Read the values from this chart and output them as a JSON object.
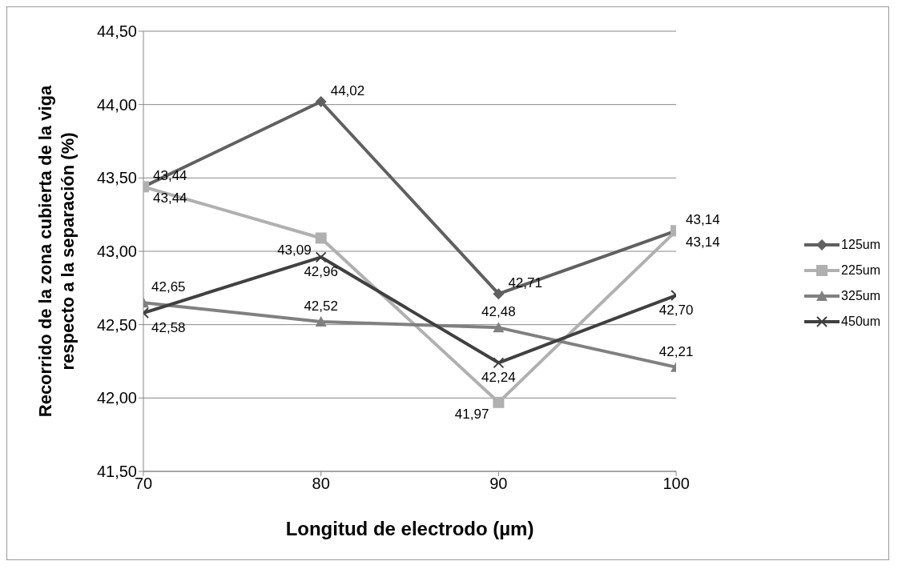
{
  "chart_data": {
    "type": "line",
    "xlabel": "Longitud de electrodo (µm)",
    "ylabel": "Recorrido de la zona cubierta de la viga respecto a la separación (%)",
    "x": [
      70,
      80,
      90,
      100
    ],
    "xlim": [
      70,
      100
    ],
    "xticks": [
      70,
      80,
      90,
      100
    ],
    "ylim": [
      41.5,
      44.5
    ],
    "yticks": [
      {
        "value": 41.5,
        "label": "41,50"
      },
      {
        "value": 42,
        "label": "42,00"
      },
      {
        "value": 42.5,
        "label": "42,50"
      },
      {
        "value": 43,
        "label": "43,00"
      },
      {
        "value": 43.5,
        "label": "43,50"
      },
      {
        "value": 44,
        "label": "44,00"
      },
      {
        "value": 44.5,
        "label": "44,50"
      }
    ],
    "grid": "y",
    "legend": "right",
    "line_style": "solid",
    "series": [
      {
        "name": "125um",
        "color": "#606060",
        "marker": "diamond",
        "values": [
          43.44,
          44.02,
          42.71,
          43.14
        ],
        "value_labels": [
          "43,44",
          "44,02",
          "42,71",
          "43,14"
        ]
      },
      {
        "name": "225um",
        "color": "#b0b0b0",
        "marker": "square",
        "values": [
          43.44,
          43.09,
          41.97,
          43.14
        ],
        "value_labels": [
          "43,44",
          "43,09",
          "41,97",
          "43,14"
        ]
      },
      {
        "name": "325um",
        "color": "#808080",
        "marker": "triangle",
        "values": [
          42.65,
          42.52,
          42.48,
          42.21
        ],
        "value_labels": [
          "42,65",
          "42,52",
          "42,48",
          "42,21"
        ]
      },
      {
        "name": "450um",
        "color": "#404040",
        "marker": "cross",
        "values": [
          42.58,
          42.96,
          42.24,
          42.7
        ],
        "value_labels": [
          "42,58",
          "42,96",
          "42,24",
          "42,70"
        ]
      }
    ]
  }
}
